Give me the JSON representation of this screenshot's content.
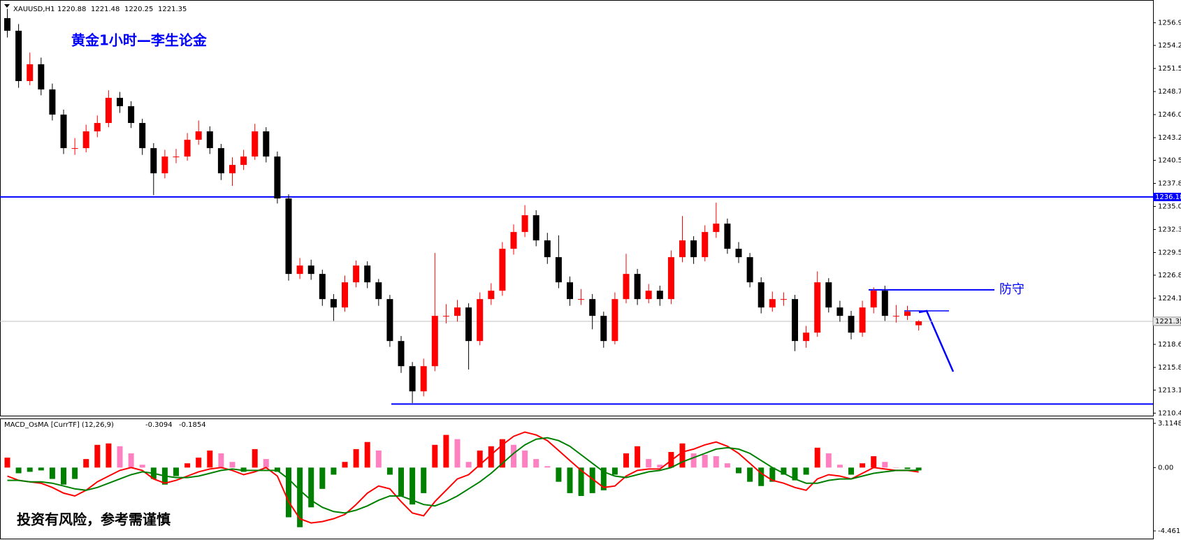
{
  "chart_data": {
    "type": "candlestick",
    "symbol": "XAUUSD,H1",
    "title": "黄金1小时—李生论金",
    "note": "投资有风险，参考需谨慎",
    "up_color": "#ff0000",
    "down_color": "#000000",
    "ylim": [
      1210.1,
      1259.0
    ],
    "yticks": [
      1256.95,
      1254.25,
      {
        "value": 1251.5,
        "label": "1251.50"
      },
      1248.75,
      {
        "value": 1246.0,
        "label": "1246.00"
      },
      1243.25,
      1240.55,
      {
        "value": 1237.8,
        "label": "1237.80"
      },
      1235.05,
      {
        "value": 1232.3,
        "label": "1232.30"
      },
      1229.55,
      1226.85,
      {
        "value": 1224.1,
        "label": "1224.10"
      },
      {
        "value": 1218.6,
        "label": "1218.60"
      },
      1215.85,
      1213.15,
      {
        "value": 1210.4,
        "label": "1210.40"
      }
    ],
    "candles": [
      [
        1257.5,
        1258.6,
        1255.2,
        1256
      ],
      [
        1256,
        1256.8,
        1249.2,
        1250
      ],
      [
        1250,
        1253.4,
        1249.5,
        1252
      ],
      [
        1252,
        1252.8,
        1248.3,
        1249
      ],
      [
        1249,
        1249.7,
        1245.3,
        1246
      ],
      [
        1246,
        1246.6,
        1241.3,
        1242
      ],
      [
        1242,
        1243.2,
        1241.2,
        1242
      ],
      [
        1242,
        1244.8,
        1241.5,
        1244
      ],
      [
        1244,
        1245.9,
        1243.3,
        1245
      ],
      [
        1245,
        1248.9,
        1244.5,
        1248
      ],
      [
        1248,
        1248.7,
        1246.2,
        1247
      ],
      [
        1247,
        1247.6,
        1244.4,
        1245
      ],
      [
        1245,
        1245.5,
        1241.2,
        1242
      ],
      [
        1242,
        1242.6,
        1236.4,
        1239
      ],
      [
        1239,
        1241.8,
        1238.4,
        1241
      ],
      [
        1241,
        1241.9,
        1240.2,
        1241
      ],
      [
        1241,
        1243.8,
        1240.5,
        1243
      ],
      [
        1243,
        1245.3,
        1242.4,
        1244
      ],
      [
        1244,
        1244.6,
        1241.3,
        1242
      ],
      [
        1242,
        1242.5,
        1238.2,
        1239
      ],
      [
        1239,
        1240.9,
        1237.5,
        1240
      ],
      [
        1240,
        1241.8,
        1239.4,
        1241
      ],
      [
        1241,
        1244.9,
        1240.6,
        1244
      ],
      [
        1244,
        1244.5,
        1240.3,
        1241
      ],
      [
        1241,
        1241.6,
        1235.4,
        1236
      ],
      [
        1236,
        1236.5,
        1226.2,
        1227
      ],
      [
        1227,
        1228.9,
        1226.4,
        1228
      ],
      [
        1228,
        1228.7,
        1226.3,
        1227
      ],
      [
        1227,
        1227.5,
        1223.2,
        1224
      ],
      [
        1224,
        1224.6,
        1221.4,
        1223
      ],
      [
        1223,
        1226.8,
        1222.5,
        1226
      ],
      [
        1226,
        1228.6,
        1225.4,
        1228
      ],
      [
        1228,
        1228.5,
        1225.3,
        1226
      ],
      [
        1226,
        1226.4,
        1223.2,
        1224
      ],
      [
        1224,
        1224.5,
        1218.3,
        1219
      ],
      [
        1219,
        1219.6,
        1215.2,
        1216
      ],
      [
        1216,
        1216.5,
        1211.6,
        1213
      ],
      [
        1213,
        1216.9,
        1212.4,
        1216
      ],
      [
        1216,
        1229.5,
        1215.4,
        1222
      ],
      [
        1222,
        1223.4,
        1221.1,
        1222
      ],
      [
        1222,
        1223.9,
        1221.3,
        1223
      ],
      [
        1223,
        1223.5,
        1215.6,
        1219
      ],
      [
        1219,
        1224.8,
        1218.5,
        1224
      ],
      [
        1224,
        1225.9,
        1223.3,
        1225
      ],
      [
        1225,
        1230.8,
        1224.4,
        1230
      ],
      [
        1230,
        1232.9,
        1229.3,
        1232
      ],
      [
        1232,
        1235.2,
        1231.4,
        1234
      ],
      [
        1234,
        1234.6,
        1230.3,
        1231
      ],
      [
        1231,
        1231.9,
        1228.2,
        1229
      ],
      [
        1229,
        1231.6,
        1225.3,
        1226
      ],
      [
        1226,
        1226.7,
        1223.2,
        1224
      ],
      [
        1224,
        1225.2,
        1223.3,
        1224
      ],
      [
        1224,
        1224.6,
        1220.4,
        1222
      ],
      [
        1222,
        1222.5,
        1218.2,
        1219
      ],
      [
        1219,
        1224.8,
        1218.6,
        1224
      ],
      [
        1224,
        1229.4,
        1223.5,
        1227
      ],
      [
        1227,
        1227.6,
        1223.3,
        1224
      ],
      [
        1224,
        1225.8,
        1223.5,
        1225
      ],
      [
        1225,
        1225.6,
        1223.2,
        1224
      ],
      [
        1224,
        1229.8,
        1223.4,
        1229
      ],
      [
        1229,
        1233.9,
        1228.4,
        1231
      ],
      [
        1231,
        1231.5,
        1228.2,
        1229
      ],
      [
        1229,
        1232.8,
        1228.5,
        1232
      ],
      [
        1232,
        1235.5,
        1231.3,
        1233
      ],
      [
        1233,
        1233.6,
        1229.4,
        1230
      ],
      [
        1230,
        1230.8,
        1228.3,
        1229
      ],
      [
        1229,
        1229.5,
        1225.4,
        1226
      ],
      [
        1226,
        1226.6,
        1222.3,
        1223
      ],
      [
        1223,
        1224.9,
        1222.5,
        1224
      ],
      [
        1224,
        1224.8,
        1223.2,
        1224
      ],
      [
        1224,
        1224.5,
        1217.8,
        1219
      ],
      [
        1219,
        1220.8,
        1218.2,
        1220
      ],
      [
        1220,
        1227.3,
        1219.5,
        1226
      ],
      [
        1226,
        1226.5,
        1222.4,
        1223
      ],
      [
        1223,
        1223.8,
        1221.3,
        1222
      ],
      [
        1222,
        1222.6,
        1219.2,
        1220
      ],
      [
        1220,
        1223.8,
        1219.5,
        1223
      ],
      [
        1223,
        1225.4,
        1222.3,
        1225
      ],
      [
        1225,
        1225.6,
        1221.4,
        1222
      ],
      [
        1222,
        1223.3,
        1221.2,
        1222
      ],
      [
        1222,
        1223.2,
        1221.5,
        1222.5
      ],
      [
        1220.88,
        1221.48,
        1220.25,
        1221.35
      ]
    ],
    "resistance": {
      "value": 1236.18,
      "color": "#0000ff"
    },
    "support": {
      "value": 1211.48,
      "color": "#0000ff"
    },
    "defense": {
      "value": 1225.11,
      "label": "防守",
      "color": "#0000ff"
    },
    "macd": {
      "title": "MACD_OsMA [CurrTF] (12,26,9)",
      "ylim": [
        -5.1,
        3.41
      ],
      "yticks": [
        3.1148,
        {
          "value": 0,
          "label": "0.00"
        },
        -4.4611
      ],
      "hist_colors": {
        "rising": "#ff0000",
        "falling": "#ff80c0",
        "negative": "#008000"
      },
      "hist": [
        0.7,
        -0.4,
        -0.3,
        -0.2,
        -0.8,
        -1.2,
        -0.8,
        0.6,
        1.6,
        1.7,
        1.5,
        1.0,
        0.2,
        -0.8,
        -1.2,
        -0.6,
        0.3,
        0.7,
        1.2,
        1.0,
        0.4,
        -0.3,
        1.3,
        0.6,
        -0.3,
        -3.5,
        -4.2,
        -2.8,
        -1.5,
        -0.5,
        0.4,
        1.3,
        1.8,
        1.2,
        -0.5,
        -2.0,
        -2.6,
        -1.8,
        1.6,
        2.3,
        2.0,
        0.4,
        1.2,
        1.5,
        2.0,
        1.6,
        1.2,
        0.6,
        0.1,
        -1.0,
        -1.8,
        -2.0,
        -1.8,
        -1.6,
        -0.5,
        1.0,
        1.5,
        0.6,
        0.2,
        1.1,
        1.7,
        1.0,
        0.9,
        0.8,
        0.3,
        -0.4,
        -1.0,
        -1.3,
        -1.0,
        -0.5,
        -0.9,
        -0.5,
        1.4,
        1.0,
        0.2,
        -0.5,
        0.3,
        0.8,
        0.4,
        0.0,
        -0.1,
        -0.2
      ],
      "series": [
        {
          "color": "#ff0000",
          "values": [
            -0.6,
            -0.9,
            -1.0,
            -1.1,
            -1.4,
            -1.8,
            -2.0,
            -1.6,
            -1.0,
            -0.6,
            -0.2,
            0.0,
            -0.2,
            -0.8,
            -1.1,
            -0.9,
            -0.6,
            -0.3,
            -0.1,
            0.0,
            -0.2,
            -0.5,
            -0.3,
            0.0,
            -0.6,
            -2.4,
            -3.6,
            -3.9,
            -3.8,
            -3.6,
            -3.3,
            -2.6,
            -1.8,
            -1.3,
            -1.5,
            -2.4,
            -3.2,
            -3.4,
            -2.4,
            -1.6,
            -0.8,
            -0.5,
            0.2,
            0.9,
            1.6,
            2.2,
            2.5,
            2.3,
            1.9,
            1.2,
            0.5,
            -0.2,
            -0.8,
            -1.4,
            -1.3,
            -0.6,
            -0.2,
            -0.1,
            -0.1,
            0.5,
            1.1,
            1.3,
            1.6,
            1.8,
            1.5,
            1.0,
            0.3,
            -0.4,
            -0.9,
            -1.1,
            -1.4,
            -1.6,
            -0.8,
            -0.5,
            -0.6,
            -0.8,
            -0.4,
            0.0,
            -0.1,
            -0.2,
            -0.2,
            -0.3094
          ]
        },
        {
          "color": "#008000",
          "values": [
            -0.9,
            -0.9,
            -1.0,
            -1.0,
            -1.1,
            -1.3,
            -1.5,
            -1.6,
            -1.4,
            -1.1,
            -0.8,
            -0.5,
            -0.3,
            -0.4,
            -0.6,
            -0.7,
            -0.7,
            -0.6,
            -0.4,
            -0.2,
            -0.1,
            -0.2,
            -0.2,
            -0.2,
            -0.2,
            -0.8,
            -1.6,
            -2.3,
            -2.8,
            -3.1,
            -3.2,
            -3.0,
            -2.7,
            -2.3,
            -2.0,
            -2.0,
            -2.3,
            -2.6,
            -2.7,
            -2.4,
            -2.0,
            -1.5,
            -1.0,
            -0.4,
            0.3,
            1.0,
            1.6,
            2.0,
            2.1,
            1.9,
            1.5,
            0.9,
            0.3,
            -0.3,
            -0.6,
            -0.7,
            -0.5,
            -0.3,
            -0.2,
            0.0,
            0.4,
            0.7,
            1.0,
            1.3,
            1.4,
            1.3,
            1.0,
            0.5,
            0.0,
            -0.4,
            -0.8,
            -1.1,
            -1.1,
            -0.9,
            -0.8,
            -0.8,
            -0.6,
            -0.4,
            -0.3,
            -0.2,
            -0.2,
            -0.1854
          ]
        }
      ]
    }
  }
}
